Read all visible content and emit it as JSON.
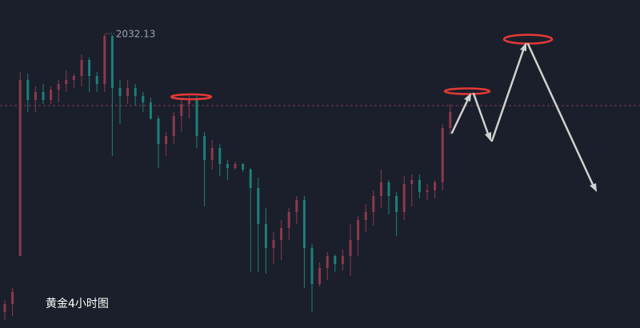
{
  "chart_data": {
    "type": "candlestick",
    "title": "黄金4小时图",
    "up_color": "#8c3a4c",
    "down_color": "#1d8079",
    "ylim": [
      1995.33,
      2036.33
    ],
    "reference_line": 2023.13,
    "open": [
      1997.33,
      1998.33,
      2004.33,
      2026.33,
      2023.83,
      2024.83,
      2023.83,
      2025.13,
      2025.83,
      2026.33,
      2026.83,
      2028.83,
      2026.83,
      2025.83,
      2031.83,
      2025.33,
      2024.33,
      2025.33,
      2024.33,
      2023.53,
      2021.53,
      2018.33,
      2019.33,
      2021.83,
      2023.33,
      2023.83,
      2019.33,
      2016.33,
      2017.83,
      2015.83,
      2015.33,
      2015.83,
      2015.13,
      2012.83,
      2008.33,
      2005.33,
      2006.33,
      2007.83,
      2009.83,
      2011.33,
      2005.33,
      2000.83,
      2002.83,
      2004.33,
      2003.33,
      2004.33,
      2006.33,
      2008.83,
      2009.83,
      2011.83,
      2013.53,
      2011.83,
      2009.83,
      2013.33,
      2013.83,
      2012.33,
      2012.53,
      2013.53,
      2020.33
    ],
    "close": [
      1998.33,
      1999.83,
      2026.33,
      2023.83,
      2024.83,
      2023.83,
      2025.13,
      2025.83,
      2026.33,
      2026.83,
      2028.83,
      2026.83,
      2025.83,
      2031.83,
      2025.33,
      2024.33,
      2025.33,
      2024.33,
      2023.53,
      2021.53,
      2018.33,
      2019.33,
      2021.83,
      2023.33,
      2023.83,
      2019.33,
      2016.33,
      2017.83,
      2015.83,
      2015.33,
      2015.83,
      2015.13,
      2012.83,
      2008.33,
      2005.33,
      2006.33,
      2007.83,
      2009.83,
      2011.33,
      2005.33,
      2000.83,
      2002.83,
      2004.33,
      2003.33,
      2004.33,
      2006.33,
      2008.83,
      2009.83,
      2011.83,
      2013.53,
      2011.83,
      2009.83,
      2013.33,
      2013.83,
      2012.33,
      2012.53,
      2013.53,
      2020.33,
      2022.33
    ],
    "high": [
      1998.83,
      2000.33,
      2027.33,
      2027.13,
      2025.53,
      2025.83,
      2025.53,
      2026.33,
      2027.53,
      2027.13,
      2029.53,
      2029.13,
      2027.33,
      2032.13,
      2031.93,
      2026.33,
      2026.33,
      2025.83,
      2024.83,
      2024.13,
      2021.83,
      2019.83,
      2022.33,
      2023.83,
      2024.33,
      2024.33,
      2019.83,
      2018.83,
      2018.33,
      2016.33,
      2016.13,
      2015.93,
      2015.33,
      2014.13,
      2010.33,
      2007.33,
      2008.83,
      2010.33,
      2011.83,
      2011.83,
      2005.83,
      2003.53,
      2004.83,
      2004.53,
      2005.13,
      2008.33,
      2009.33,
      2010.83,
      2012.53,
      2015.13,
      2013.83,
      2012.33,
      2014.33,
      2014.53,
      2014.53,
      2013.33,
      2013.83,
      2020.83,
      2023.33
    ],
    "low": [
      1996.33,
      1996.83,
      2004.53,
      2022.33,
      2022.33,
      2023.33,
      2023.33,
      2023.53,
      2024.83,
      2025.33,
      2025.53,
      2024.83,
      2024.83,
      2024.83,
      2016.83,
      2020.83,
      2023.33,
      2023.13,
      2022.33,
      2021.33,
      2015.33,
      2016.83,
      2018.33,
      2019.83,
      2021.53,
      2017.83,
      2010.53,
      2015.13,
      2014.33,
      2013.83,
      2015.13,
      2014.83,
      2002.33,
      2002.33,
      2002.13,
      2003.33,
      2003.83,
      2006.33,
      2008.33,
      2000.33,
      1997.33,
      2000.53,
      2001.33,
      2002.33,
      2002.53,
      2001.83,
      2004.33,
      2007.33,
      2008.13,
      2010.33,
      2009.53,
      2006.83,
      2008.83,
      2010.53,
      2011.53,
      2011.33,
      2011.53,
      2012.53,
      2019.53
    ]
  }
}
